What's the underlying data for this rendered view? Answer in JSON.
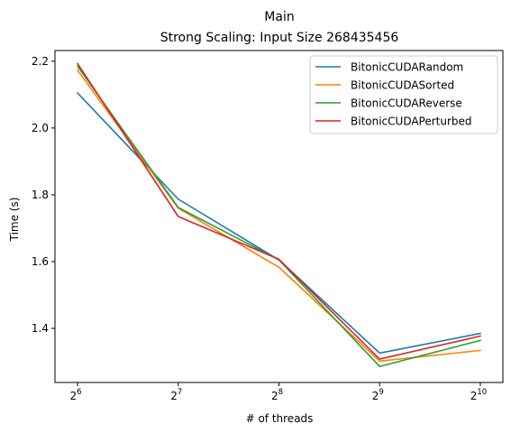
{
  "chart_data": {
    "type": "line",
    "title": "Main",
    "subtitle": "Strong Scaling: Input Size 268435456",
    "xlabel": "# of threads",
    "ylabel": "Time (s)",
    "x_scale": "log2",
    "x": [
      64,
      128,
      256,
      512,
      1024
    ],
    "x_tick_labels": [
      {
        "base": "2",
        "exp": "6"
      },
      {
        "base": "2",
        "exp": "7"
      },
      {
        "base": "2",
        "exp": "8"
      },
      {
        "base": "2",
        "exp": "9"
      },
      {
        "base": "2",
        "exp": "10"
      }
    ],
    "y_ticks": [
      1.4,
      1.6,
      1.8,
      2.0,
      2.2
    ],
    "y_tick_labels": [
      "1.4",
      "1.6",
      "1.8",
      "2.0",
      "2.2"
    ],
    "ylim": [
      1.238,
      2.232
    ],
    "grid": false,
    "legend_position": "top-right",
    "series": [
      {
        "name": "BitonicCUDARandom",
        "color": "#1f77b4",
        "values": [
          2.105,
          1.787,
          1.605,
          1.326,
          1.385
        ]
      },
      {
        "name": "BitonicCUDASorted",
        "color": "#ff7f0e",
        "values": [
          2.173,
          1.76,
          1.583,
          1.302,
          1.334
        ]
      },
      {
        "name": "BitonicCUDAReverse",
        "color": "#2ca02c",
        "values": [
          2.185,
          1.762,
          1.605,
          1.286,
          1.364
        ]
      },
      {
        "name": "BitonicCUDAPerturbed",
        "color": "#d62728",
        "values": [
          2.193,
          1.735,
          1.607,
          1.308,
          1.377
        ]
      }
    ]
  }
}
